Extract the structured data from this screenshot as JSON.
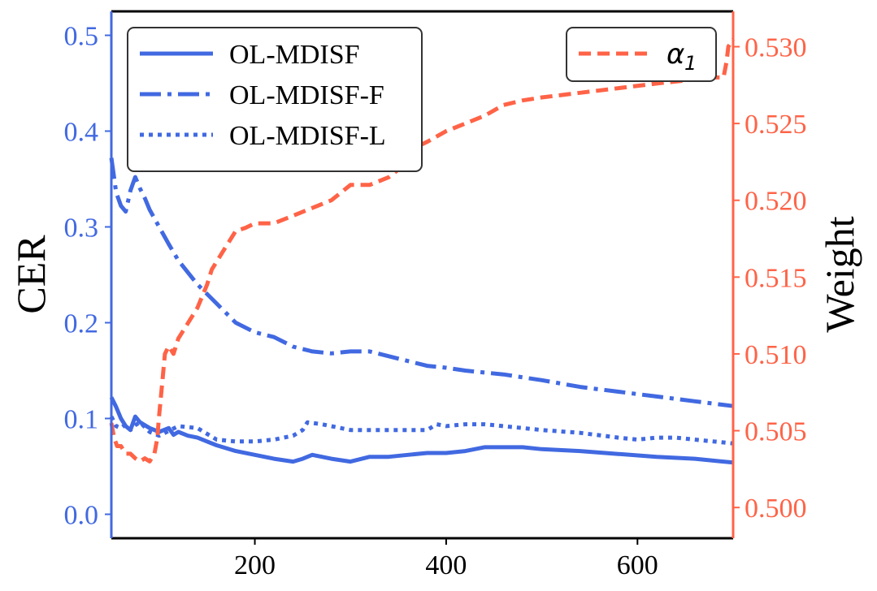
{
  "chart_data": {
    "type": "line",
    "xlim": [
      50,
      700
    ],
    "x_ticks": [
      200,
      400,
      600
    ],
    "left_axis": {
      "label": "CER",
      "ylim": [
        -0.025,
        0.525
      ],
      "ticks": [
        "0.0",
        "0.1",
        "0.2",
        "0.3",
        "0.4",
        "0.5"
      ],
      "tick_values": [
        0.0,
        0.1,
        0.2,
        0.3,
        0.4,
        0.5
      ],
      "color": "#4169e1"
    },
    "right_axis": {
      "label": "Weight",
      "ylim": [
        0.498,
        0.5323
      ],
      "ticks": [
        "0.500",
        "0.505",
        "0.510",
        "0.515",
        "0.520",
        "0.525",
        "0.530"
      ],
      "tick_values": [
        0.5,
        0.505,
        0.51,
        0.515,
        0.52,
        0.525,
        0.53
      ],
      "color": "#ff6347"
    },
    "grid": false,
    "legend_left": {
      "placement": "top-left",
      "entries": [
        "OL-MDISF",
        "OL-MDISF-F",
        "OL-MDISF-L"
      ]
    },
    "legend_right": {
      "placement": "top-right",
      "entries": [
        "α",
        "1"
      ]
    },
    "series": [
      {
        "name": "OL-MDISF",
        "axis": "left",
        "style": "solid",
        "color": "#4169e1",
        "x": [
          50,
          55,
          60,
          65,
          70,
          75,
          80,
          90,
          100,
          110,
          115,
          120,
          130,
          140,
          160,
          180,
          200,
          220,
          240,
          250,
          260,
          280,
          300,
          320,
          340,
          360,
          380,
          400,
          420,
          440,
          460,
          480,
          500,
          540,
          580,
          620,
          660,
          700
        ],
        "y": [
          0.122,
          0.112,
          0.1,
          0.092,
          0.088,
          0.102,
          0.096,
          0.09,
          0.086,
          0.09,
          0.083,
          0.086,
          0.082,
          0.08,
          0.072,
          0.066,
          0.062,
          0.058,
          0.055,
          0.058,
          0.062,
          0.058,
          0.055,
          0.06,
          0.06,
          0.062,
          0.064,
          0.064,
          0.066,
          0.07,
          0.07,
          0.07,
          0.068,
          0.066,
          0.063,
          0.06,
          0.058,
          0.054
        ]
      },
      {
        "name": "OL-MDISF-F",
        "axis": "left",
        "style": "dashdot",
        "color": "#4169e1",
        "x": [
          50,
          55,
          60,
          65,
          70,
          75,
          80,
          85,
          90,
          100,
          110,
          120,
          140,
          160,
          180,
          200,
          220,
          240,
          260,
          280,
          300,
          320,
          340,
          360,
          380,
          400,
          420,
          440,
          460,
          480,
          500,
          540,
          580,
          620,
          660,
          700
        ],
        "y": [
          0.372,
          0.336,
          0.322,
          0.316,
          0.338,
          0.352,
          0.34,
          0.33,
          0.318,
          0.3,
          0.282,
          0.265,
          0.24,
          0.22,
          0.2,
          0.19,
          0.185,
          0.175,
          0.17,
          0.168,
          0.17,
          0.17,
          0.165,
          0.16,
          0.155,
          0.153,
          0.15,
          0.148,
          0.146,
          0.143,
          0.14,
          0.133,
          0.128,
          0.123,
          0.118,
          0.113
        ]
      },
      {
        "name": "OL-MDISF-L",
        "axis": "left",
        "style": "dotted",
        "color": "#4169e1",
        "x": [
          50,
          55,
          60,
          65,
          70,
          75,
          80,
          90,
          100,
          120,
          140,
          160,
          180,
          200,
          220,
          240,
          250,
          255,
          270,
          300,
          330,
          360,
          380,
          390,
          400,
          420,
          440,
          460,
          480,
          500,
          540,
          580,
          600,
          620,
          640,
          660,
          700
        ],
        "y": [
          0.102,
          0.092,
          0.09,
          0.094,
          0.088,
          0.093,
          0.096,
          0.086,
          0.082,
          0.092,
          0.09,
          0.078,
          0.076,
          0.076,
          0.078,
          0.082,
          0.088,
          0.096,
          0.094,
          0.088,
          0.088,
          0.088,
          0.088,
          0.094,
          0.092,
          0.094,
          0.094,
          0.092,
          0.09,
          0.088,
          0.085,
          0.08,
          0.078,
          0.08,
          0.08,
          0.078,
          0.074
        ]
      },
      {
        "name": "α1",
        "axis": "right",
        "style": "dashed",
        "color": "#ff6347",
        "x": [
          50,
          53,
          56,
          60,
          65,
          70,
          75,
          80,
          85,
          90,
          95,
          98,
          100,
          103,
          106,
          110,
          115,
          120,
          125,
          130,
          140,
          150,
          155,
          160,
          170,
          180,
          190,
          200,
          220,
          240,
          260,
          280,
          300,
          320,
          340,
          360,
          370,
          380,
          400,
          420,
          440,
          460,
          480,
          500,
          540,
          580,
          620,
          650,
          680,
          690,
          693,
          695,
          700
        ],
        "y": [
          0.5055,
          0.5045,
          0.504,
          0.504,
          0.5035,
          0.5035,
          0.5032,
          0.503,
          0.5032,
          0.503,
          0.5035,
          0.5045,
          0.506,
          0.508,
          0.51,
          0.5105,
          0.51,
          0.511,
          0.5115,
          0.512,
          0.513,
          0.5145,
          0.5155,
          0.516,
          0.517,
          0.518,
          0.5182,
          0.5185,
          0.5185,
          0.519,
          0.5195,
          0.52,
          0.521,
          0.521,
          0.5215,
          0.5225,
          0.5235,
          0.5238,
          0.5245,
          0.525,
          0.5255,
          0.5262,
          0.5265,
          0.5267,
          0.527,
          0.5273,
          0.5276,
          0.5278,
          0.528,
          0.528,
          0.529,
          0.53,
          0.5305
        ]
      }
    ]
  }
}
